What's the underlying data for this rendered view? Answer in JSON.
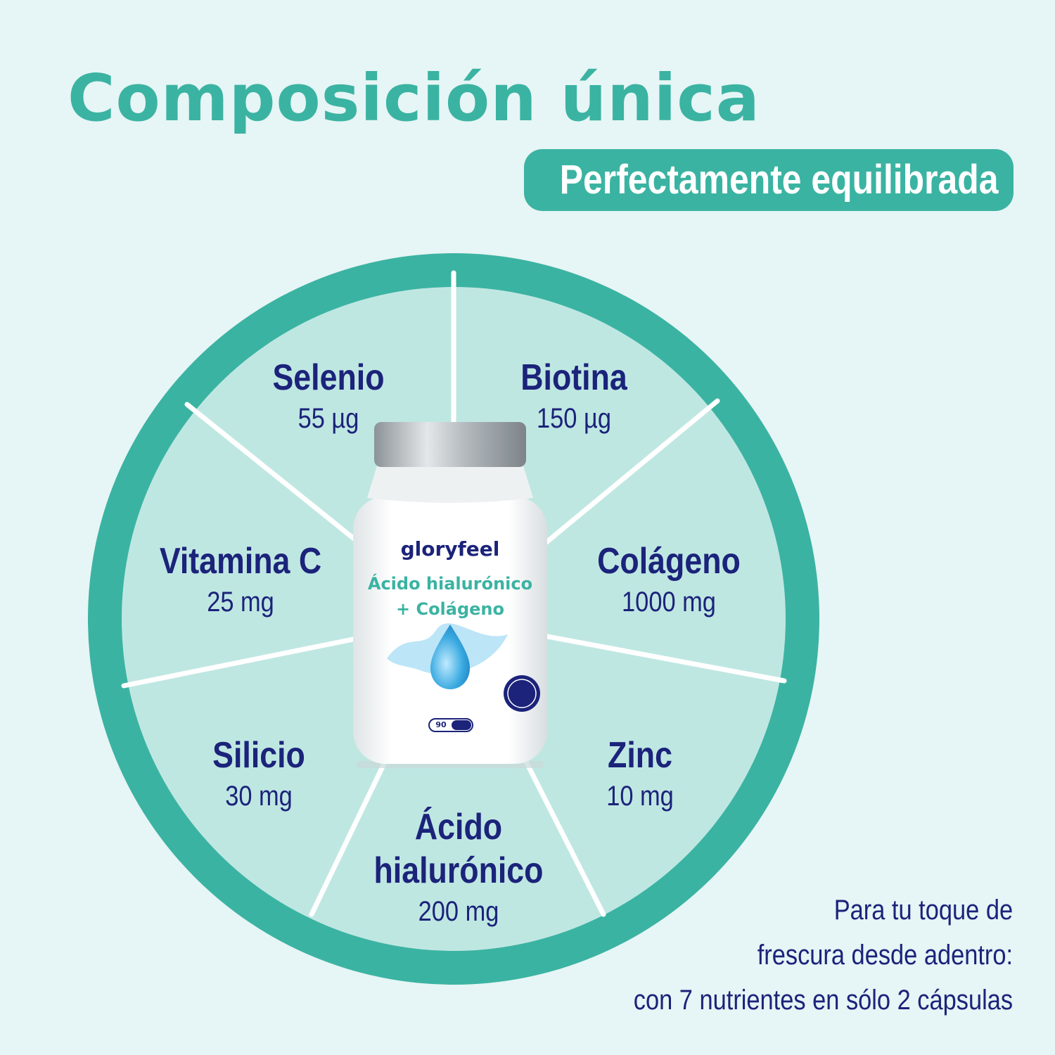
{
  "header": {
    "title": "Composición única",
    "badge": "Perfectamente equilibrada"
  },
  "wheel": {
    "segments": [
      {
        "name": "Selenio",
        "amount": "55 µg"
      },
      {
        "name": "Biotina",
        "amount": "150 µg"
      },
      {
        "name": "Vitamina C",
        "amount": "25 mg"
      },
      {
        "name": "Colágeno",
        "amount": "1000 mg"
      },
      {
        "name": "Silicio",
        "amount": "30 mg"
      },
      {
        "name": "Zinc",
        "amount": "10 mg"
      },
      {
        "name_line1": "Ácido",
        "name_line2": "hialurónico",
        "amount": "200 mg"
      }
    ]
  },
  "product": {
    "brand": "gloryfeel",
    "line1": "Ácido hialurónico",
    "line2": "+ Colágeno",
    "count": "90"
  },
  "note": {
    "line1": "Para tu toque de",
    "line2": "frescura desde adentro:",
    "line3": "con 7 nutrientes en sólo 2 cápsulas"
  },
  "colors": {
    "accent": "#3bb3a2",
    "segment": "#bfe7e2",
    "background": "#e6f5f5",
    "text": "#1b237a"
  }
}
